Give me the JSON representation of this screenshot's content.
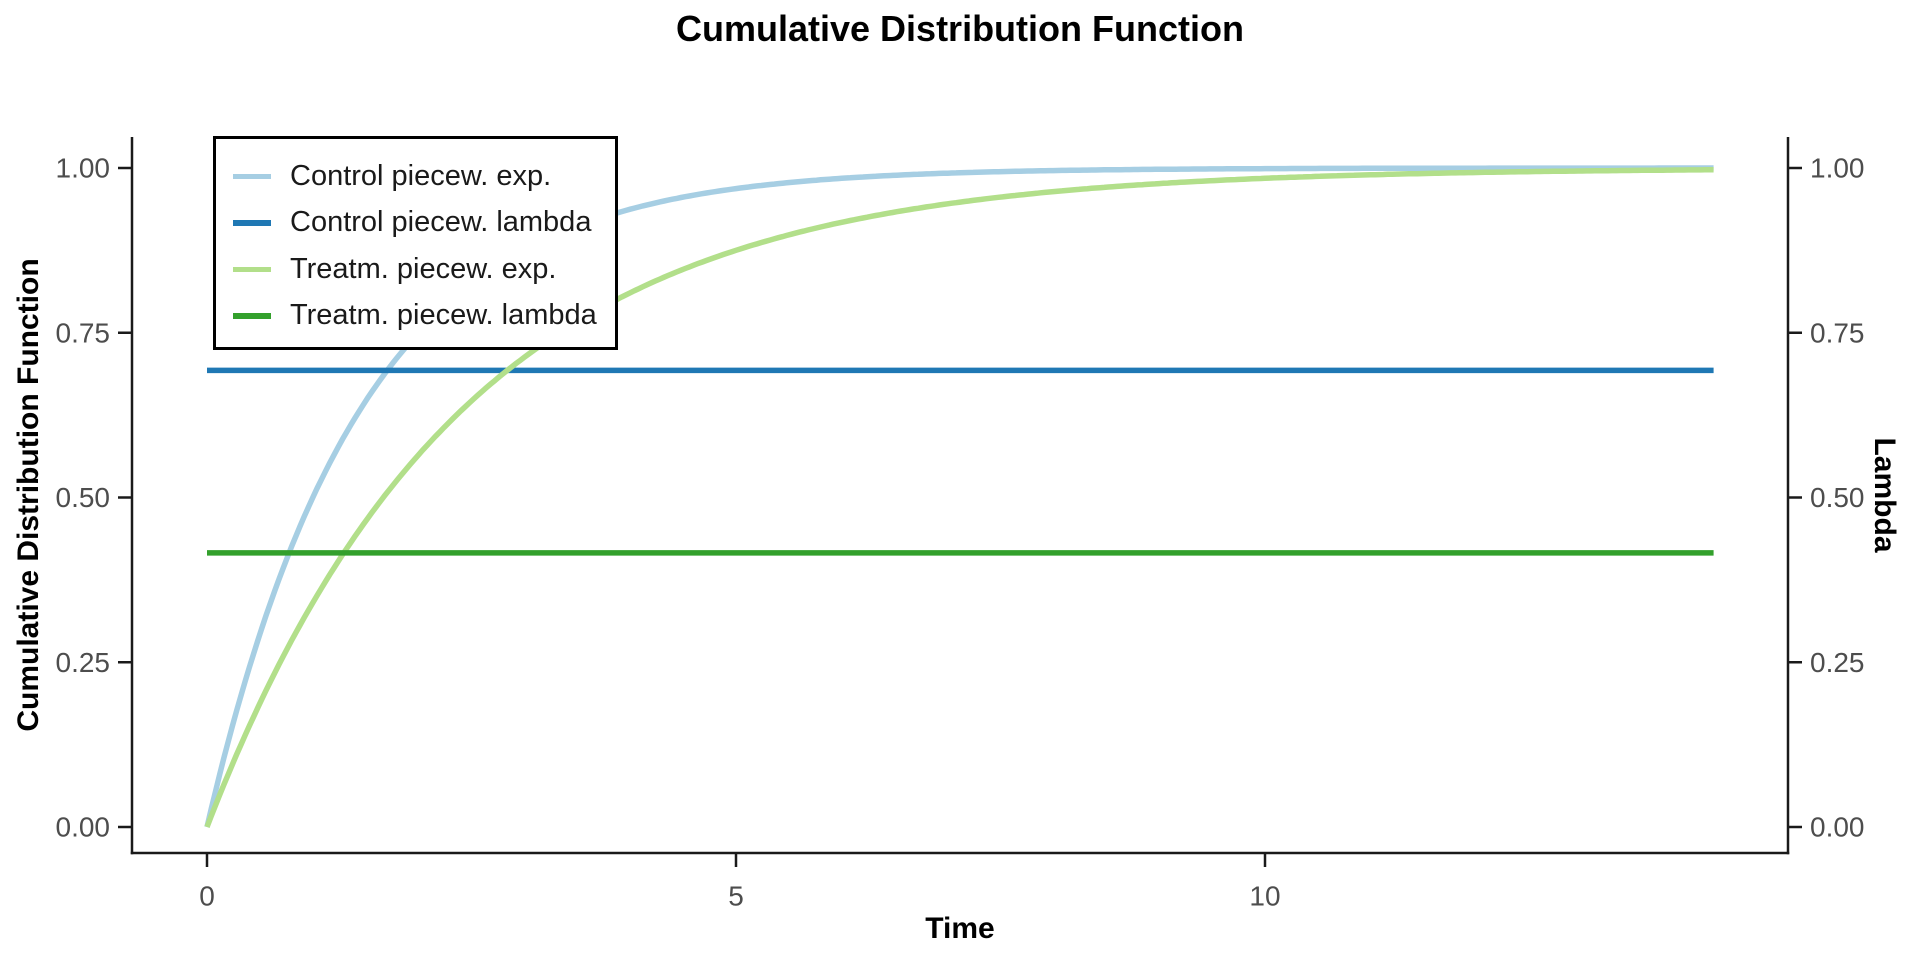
{
  "page": {
    "background": "#FFFFFF"
  },
  "chart_data": {
    "type": "line",
    "title": "Cumulative Distribution Function",
    "xlabel": "Time",
    "ylabel_left": "Cumulative Distribution Function",
    "ylabel_right": "Lambda",
    "x_ticks": [
      {
        "value": 0,
        "label": "0"
      },
      {
        "value": 5,
        "label": "5"
      },
      {
        "value": 10,
        "label": "10"
      }
    ],
    "y_ticks": [
      {
        "value": 0.0,
        "label": "0.00"
      },
      {
        "value": 0.25,
        "label": "0.25"
      },
      {
        "value": 0.5,
        "label": "0.50"
      },
      {
        "value": 0.75,
        "label": "0.75"
      },
      {
        "value": 1.0,
        "label": "1.00"
      }
    ],
    "right_axis_mirrors_left_ticks": true,
    "xlim": [
      -0.71,
      14.95
    ],
    "ylim": [
      -0.04,
      1.047
    ],
    "grid": false,
    "legend_position": "top-left-inside",
    "series": [
      {
        "name": "Control piecew. exp.",
        "kind": "exponential_cdf",
        "rate": 0.693,
        "x_start": 0,
        "x_end": 14.24,
        "color": "#A6CEE3"
      },
      {
        "name": "Control piecew. lambda",
        "kind": "hline",
        "value": 0.693,
        "x_start": 0,
        "x_end": 14.24,
        "color": "#1F78B4"
      },
      {
        "name": "Treatm. piecew. exp.",
        "kind": "exponential_cdf",
        "rate": 0.416,
        "x_start": 0,
        "x_end": 14.24,
        "color": "#B2DF8A"
      },
      {
        "name": "Treatm. piecew. lambda",
        "kind": "hline",
        "value": 0.416,
        "x_start": 0,
        "x_end": 14.24,
        "color": "#33A02C"
      }
    ],
    "styles": {
      "tick_label_color": "#4D4D4D",
      "axis_line_color": "#1A1A1A",
      "legend_border_color": "#000000",
      "legend_background": "#FFFFFF"
    }
  }
}
